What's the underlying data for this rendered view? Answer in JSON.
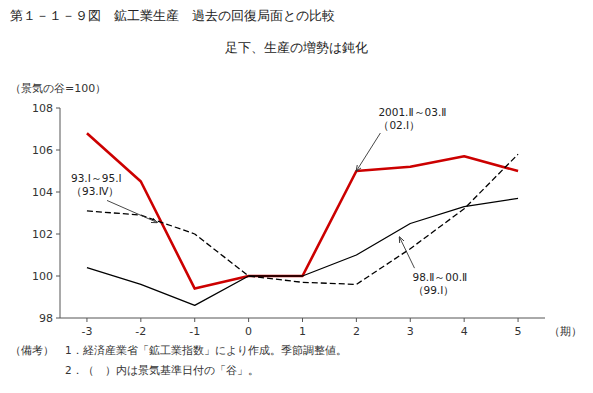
{
  "chart_data": {
    "type": "line",
    "title": "第１－１－９図　鉱工業生産　過去の回復局面との比較",
    "subtitle": "足下、生産の増勢は鈍化",
    "y_label": "（景気の谷=100）",
    "x_label": "（期）",
    "notes": [
      "（備考）　1．経済産業省「鉱工業指数」により作成。季節調整値。",
      "　　　　　2．（　）内は景気基準日付の「谷」。"
    ],
    "x": [
      -3,
      -2,
      -1,
      0,
      1,
      2,
      3,
      4,
      5
    ],
    "xlim": [
      -3.5,
      5.5
    ],
    "ylim": [
      98,
      108
    ],
    "xticks": [
      -3,
      -2,
      -1,
      0,
      1,
      2,
      3,
      4,
      5
    ],
    "yticks": [
      98,
      100,
      102,
      104,
      106,
      108
    ],
    "grid": false,
    "series": [
      {
        "color": "#cc0000",
        "line_style": "solid",
        "values": [
          106.8,
          104.5,
          99.4,
          100.0,
          100.0,
          105.0,
          105.2,
          105.7,
          105.0
        ]
      },
      {
        "color": "#000000",
        "line_style": "dashed",
        "values": [
          103.1,
          102.9,
          102.0,
          100.0,
          99.7,
          99.6,
          101.3,
          103.2,
          105.8
        ]
      },
      {
        "color": "#000000",
        "line_style": "solid",
        "values": [
          100.4,
          99.6,
          98.6,
          100.0,
          100.0,
          101.0,
          102.5,
          103.3,
          103.7
        ]
      }
    ],
    "annotations": [
      {
        "text": "2001.Ⅱ～03.Ⅱ\n（02.Ⅰ）",
        "x": 2.0,
        "y": 105.0
      },
      {
        "text": "93.Ⅰ～95.Ⅰ\n（93.Ⅳ）",
        "x": -1.7,
        "y": 102.55
      },
      {
        "text": "98.Ⅱ～00.Ⅱ\n（99.Ⅰ）",
        "x": 2.8,
        "y": 101.85
      }
    ]
  }
}
